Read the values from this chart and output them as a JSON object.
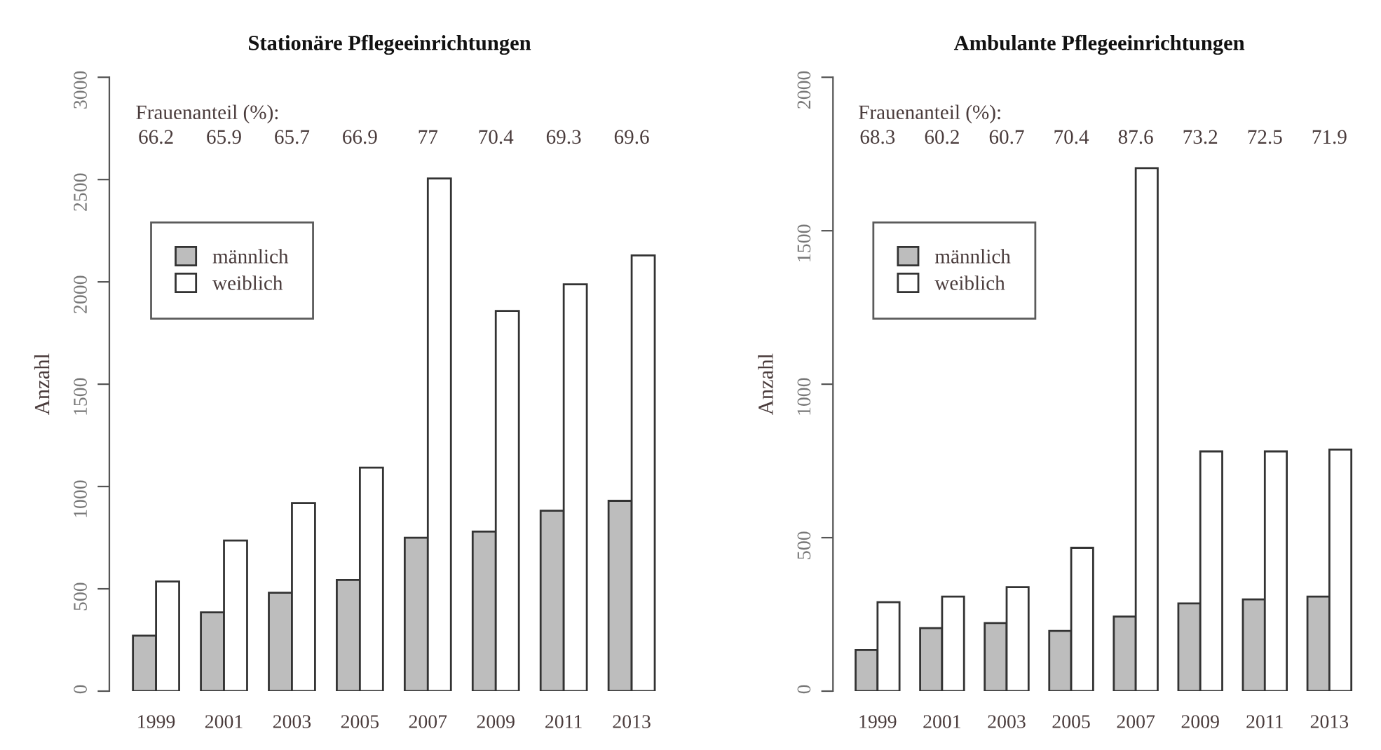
{
  "chart_data": [
    {
      "type": "bar",
      "title": "Stationäre Pflegeeinrichtungen",
      "ylabel": "Anzahl",
      "categories": [
        "1999",
        "2001",
        "2003",
        "2005",
        "2007",
        "2009",
        "2011",
        "2013"
      ],
      "series": [
        {
          "name": "männlich",
          "color": "#bdbdbd",
          "values": [
            271,
            385,
            481,
            543,
            750,
            780,
            882,
            930
          ]
        },
        {
          "name": "weiblich",
          "color": "#ffffff",
          "values": [
            536,
            736,
            919,
            1092,
            2505,
            1858,
            1988,
            2129
          ]
        }
      ],
      "ylim": [
        0,
        3000
      ],
      "yticks": [
        0,
        500,
        1000,
        1500,
        2000,
        2500,
        3000
      ],
      "grid": false,
      "legend": "top left",
      "annotations": [
        "Frauenanteil (%):",
        "66.2",
        "65.9",
        "65.7",
        "66.9",
        "77",
        "70.4",
        "69.3",
        "69.6"
      ]
    },
    {
      "type": "bar",
      "title": "Ambulante Pflegeeinrichtungen",
      "ylabel": "Anzahl",
      "categories": [
        "1999",
        "2001",
        "2003",
        "2005",
        "2007",
        "2009",
        "2011",
        "2013"
      ],
      "series": [
        {
          "name": "männlich",
          "color": "#bdbdbd",
          "values": [
            134,
            205,
            222,
            196,
            243,
            286,
            299,
            308
          ]
        },
        {
          "name": "weiblich",
          "color": "#ffffff",
          "values": [
            290,
            308,
            339,
            467,
            1704,
            781,
            781,
            787
          ]
        }
      ],
      "ylim": [
        0,
        2000
      ],
      "yticks": [
        0,
        500,
        1000,
        1500,
        2000
      ],
      "grid": false,
      "legend": "top left",
      "annotations": [
        "Frauenanteil (%):",
        "68.3",
        "60.2",
        "60.7",
        "70.4",
        "87.6",
        "73.2",
        "72.5",
        "71.9"
      ]
    }
  ]
}
